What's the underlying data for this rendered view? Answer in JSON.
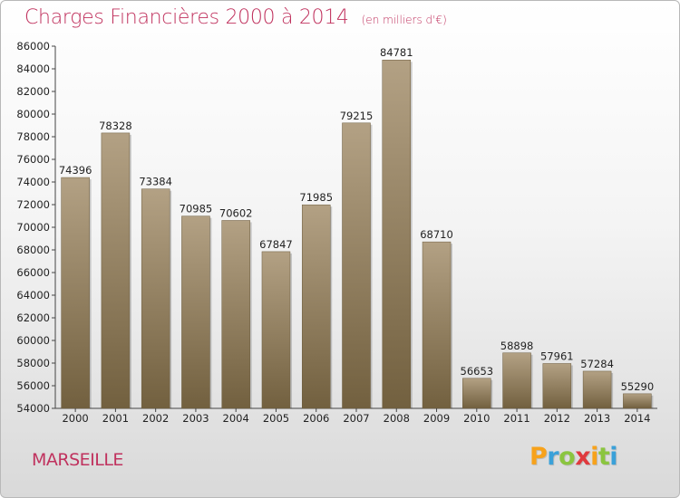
{
  "header": {
    "title": "Charges Financières 2000 à 2014",
    "unit_note": "(en milliers d'€)"
  },
  "footer": {
    "city": "MARSEILLE",
    "logo_letters": [
      "P",
      "r",
      "o",
      "x",
      "i",
      "t",
      "i"
    ],
    "logo_colors": [
      "#f7a21b",
      "#3aa1d9",
      "#8bc53f",
      "#e03a3e",
      "#f7a21b",
      "#8bc53f",
      "#3aa1d9"
    ]
  },
  "chart_data": {
    "type": "bar",
    "title": "Charges Financières 2000 à 2014",
    "subtitle": "(en milliers d'€)",
    "categories": [
      "2000",
      "2001",
      "2002",
      "2003",
      "2004",
      "2005",
      "2006",
      "2007",
      "2008",
      "2009",
      "2010",
      "2011",
      "2012",
      "2013",
      "2014"
    ],
    "values": [
      74396,
      78328,
      73384,
      70985,
      70602,
      67847,
      71985,
      79215,
      84781,
      68710,
      56653,
      58898,
      57961,
      57284,
      55290
    ],
    "data_labels": [
      "74396",
      "78328",
      "73384",
      "70985",
      "70602",
      "67847",
      "71985",
      "79215",
      "84781",
      "68710",
      "56653",
      "58898",
      "57961",
      "57284",
      "55290"
    ],
    "yticks": [
      54000,
      56000,
      58000,
      60000,
      62000,
      64000,
      66000,
      68000,
      70000,
      72000,
      74000,
      76000,
      78000,
      80000,
      82000,
      84000,
      86000
    ],
    "ylim": [
      54000,
      86000
    ],
    "grid": false,
    "bar_color_top": "#b3a184",
    "bar_color_bottom": "#72603f"
  }
}
